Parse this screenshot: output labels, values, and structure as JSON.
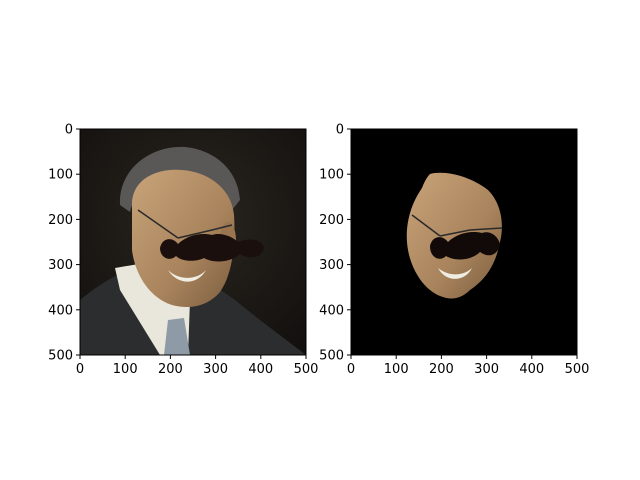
{
  "chart_data": [
    {
      "type": "image",
      "title": "",
      "xlabel": "",
      "ylabel": "",
      "xlim": [
        0,
        500
      ],
      "ylim": [
        500,
        0
      ],
      "xticks": [
        0,
        100,
        200,
        300,
        400,
        500
      ],
      "yticks": [
        0,
        100,
        200,
        300,
        400,
        500
      ],
      "grid": false,
      "content": "photo"
    },
    {
      "type": "image",
      "title": "",
      "xlabel": "",
      "ylabel": "",
      "xlim": [
        0,
        500
      ],
      "ylim": [
        500,
        0
      ],
      "xticks": [
        0,
        100,
        200,
        300,
        400,
        500
      ],
      "yticks": [
        0,
        100,
        200,
        300,
        400,
        500
      ],
      "grid": false,
      "content": "segmented-face"
    }
  ]
}
